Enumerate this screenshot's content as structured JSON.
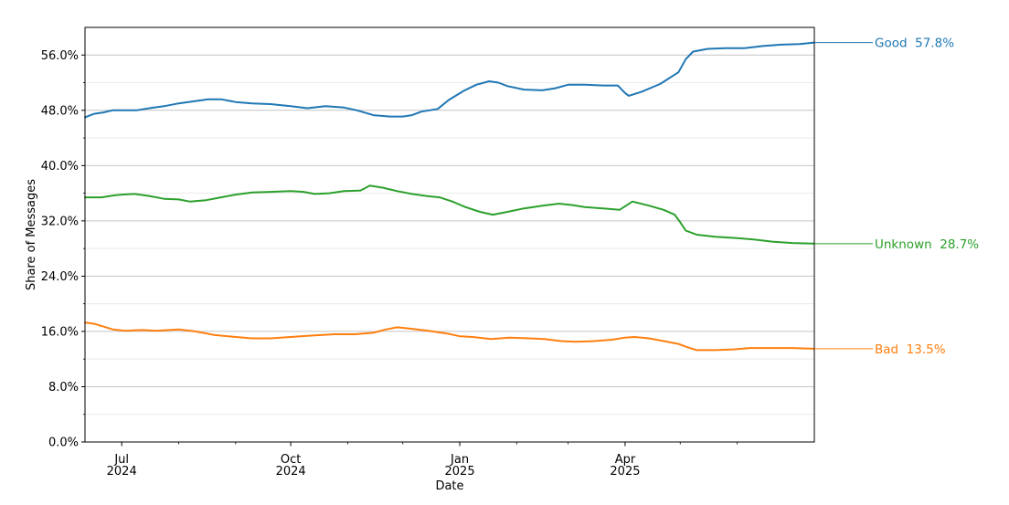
{
  "chart_data": {
    "type": "line",
    "xlabel": "Date",
    "ylabel": "Share of Messages",
    "xlim": [
      "2024-06-11",
      "2025-07-13"
    ],
    "ylim": [
      0,
      60
    ],
    "y_ticks": [
      0,
      8,
      16,
      24,
      32,
      40,
      48,
      56
    ],
    "y_tick_labels": [
      "0.0%",
      "8.0%",
      "16.0%",
      "24.0%",
      "32.0%",
      "40.0%",
      "48.0%",
      "56.0%"
    ],
    "y_minor_ticks": [
      4,
      12,
      20,
      28,
      36,
      44,
      52
    ],
    "x_ticks": [
      "2024-07-01",
      "2024-10-01",
      "2025-01-01",
      "2025-04-01"
    ],
    "x_tick_labels": [
      [
        "Jul",
        "2024"
      ],
      [
        "Oct",
        "2024"
      ],
      [
        "Jan",
        "2025"
      ],
      [
        "Apr",
        "2025"
      ]
    ],
    "x_minor_ticks": [
      "2024-08-01",
      "2024-09-01",
      "2024-11-01",
      "2024-12-01",
      "2025-02-01",
      "2025-03-01",
      "2025-05-01",
      "2025-06-01"
    ],
    "grid": "horizontal major and minor",
    "series": [
      {
        "name": "Good",
        "end_label": "Good  57.8%",
        "color": "#1f77b4",
        "points": [
          [
            "2024-06-11",
            47.0
          ],
          [
            "2024-06-16",
            47.5
          ],
          [
            "2024-06-21",
            47.7
          ],
          [
            "2024-06-26",
            48.0
          ],
          [
            "2024-07-01",
            48.0
          ],
          [
            "2024-07-09",
            48.0
          ],
          [
            "2024-07-16",
            48.3
          ],
          [
            "2024-07-24",
            48.6
          ],
          [
            "2024-08-01",
            49.0
          ],
          [
            "2024-08-09",
            49.3
          ],
          [
            "2024-08-17",
            49.6
          ],
          [
            "2024-08-24",
            49.6
          ],
          [
            "2024-09-01",
            49.2
          ],
          [
            "2024-09-10",
            49.0
          ],
          [
            "2024-09-20",
            48.9
          ],
          [
            "2024-10-01",
            48.6
          ],
          [
            "2024-10-10",
            48.3
          ],
          [
            "2024-10-20",
            48.6
          ],
          [
            "2024-10-30",
            48.4
          ],
          [
            "2024-11-06",
            48.0
          ],
          [
            "2024-11-15",
            47.3
          ],
          [
            "2024-11-24",
            47.1
          ],
          [
            "2024-12-01",
            47.1
          ],
          [
            "2024-12-06",
            47.3
          ],
          [
            "2024-12-11",
            47.8
          ],
          [
            "2024-12-20",
            48.2
          ],
          [
            "2024-12-26",
            49.5
          ],
          [
            "2025-01-03",
            50.8
          ],
          [
            "2025-01-10",
            51.7
          ],
          [
            "2025-01-17",
            52.2
          ],
          [
            "2025-01-22",
            52.0
          ],
          [
            "2025-01-27",
            51.5
          ],
          [
            "2025-02-05",
            51.0
          ],
          [
            "2025-02-15",
            50.9
          ],
          [
            "2025-02-22",
            51.2
          ],
          [
            "2025-03-01",
            51.7
          ],
          [
            "2025-03-10",
            51.7
          ],
          [
            "2025-03-20",
            51.6
          ],
          [
            "2025-03-28",
            51.6
          ],
          [
            "2025-04-01",
            50.5
          ],
          [
            "2025-04-03",
            50.1
          ],
          [
            "2025-04-10",
            50.7
          ],
          [
            "2025-04-20",
            51.8
          ],
          [
            "2025-04-30",
            53.5
          ],
          [
            "2025-05-04",
            55.4
          ],
          [
            "2025-05-08",
            56.5
          ],
          [
            "2025-05-16",
            56.9
          ],
          [
            "2025-05-26",
            57.0
          ],
          [
            "2025-06-05",
            57.0
          ],
          [
            "2025-06-15",
            57.3
          ],
          [
            "2025-06-25",
            57.5
          ],
          [
            "2025-07-05",
            57.6
          ],
          [
            "2025-07-13",
            57.8
          ]
        ]
      },
      {
        "name": "Unknown",
        "end_label": "Unknown  28.7%",
        "color": "#2ca02c",
        "points": [
          [
            "2024-06-11",
            35.4
          ],
          [
            "2024-06-20",
            35.4
          ],
          [
            "2024-06-27",
            35.7
          ],
          [
            "2024-07-01",
            35.8
          ],
          [
            "2024-07-08",
            35.9
          ],
          [
            "2024-07-16",
            35.6
          ],
          [
            "2024-07-24",
            35.2
          ],
          [
            "2024-08-01",
            35.1
          ],
          [
            "2024-08-07",
            34.8
          ],
          [
            "2024-08-16",
            35.0
          ],
          [
            "2024-08-24",
            35.4
          ],
          [
            "2024-09-01",
            35.8
          ],
          [
            "2024-09-10",
            36.1
          ],
          [
            "2024-09-20",
            36.2
          ],
          [
            "2024-10-01",
            36.3
          ],
          [
            "2024-10-08",
            36.2
          ],
          [
            "2024-10-14",
            35.9
          ],
          [
            "2024-10-22",
            36.0
          ],
          [
            "2024-10-30",
            36.3
          ],
          [
            "2024-11-08",
            36.4
          ],
          [
            "2024-11-13",
            37.1
          ],
          [
            "2024-11-20",
            36.8
          ],
          [
            "2024-11-28",
            36.3
          ],
          [
            "2024-12-06",
            35.9
          ],
          [
            "2024-12-14",
            35.6
          ],
          [
            "2024-12-21",
            35.4
          ],
          [
            "2024-12-28",
            34.8
          ],
          [
            "2025-01-04",
            34.0
          ],
          [
            "2025-01-12",
            33.3
          ],
          [
            "2025-01-19",
            32.9
          ],
          [
            "2025-01-27",
            33.3
          ],
          [
            "2025-02-05",
            33.8
          ],
          [
            "2025-02-15",
            34.2
          ],
          [
            "2025-02-24",
            34.5
          ],
          [
            "2025-03-03",
            34.3
          ],
          [
            "2025-03-10",
            34.0
          ],
          [
            "2025-03-20",
            33.8
          ],
          [
            "2025-03-29",
            33.6
          ],
          [
            "2025-04-05",
            34.8
          ],
          [
            "2025-04-14",
            34.2
          ],
          [
            "2025-04-22",
            33.6
          ],
          [
            "2025-04-28",
            32.9
          ],
          [
            "2025-05-01",
            31.8
          ],
          [
            "2025-05-04",
            30.6
          ],
          [
            "2025-05-10",
            30.0
          ],
          [
            "2025-05-20",
            29.7
          ],
          [
            "2025-06-01",
            29.5
          ],
          [
            "2025-06-10",
            29.3
          ],
          [
            "2025-06-20",
            29.0
          ],
          [
            "2025-07-01",
            28.8
          ],
          [
            "2025-07-13",
            28.7
          ]
        ]
      },
      {
        "name": "Bad",
        "end_label": "Bad  13.5%",
        "color": "#ff7f0e",
        "points": [
          [
            "2024-06-11",
            17.3
          ],
          [
            "2024-06-16",
            17.1
          ],
          [
            "2024-06-21",
            16.7
          ],
          [
            "2024-06-26",
            16.3
          ],
          [
            "2024-07-03",
            16.1
          ],
          [
            "2024-07-12",
            16.2
          ],
          [
            "2024-07-20",
            16.1
          ],
          [
            "2024-08-01",
            16.3
          ],
          [
            "2024-08-10",
            16.0
          ],
          [
            "2024-08-20",
            15.5
          ],
          [
            "2024-09-01",
            15.2
          ],
          [
            "2024-09-10",
            15.0
          ],
          [
            "2024-09-20",
            15.0
          ],
          [
            "2024-10-01",
            15.2
          ],
          [
            "2024-10-12",
            15.4
          ],
          [
            "2024-10-25",
            15.6
          ],
          [
            "2024-11-05",
            15.6
          ],
          [
            "2024-11-15",
            15.8
          ],
          [
            "2024-11-22",
            16.3
          ],
          [
            "2024-11-28",
            16.6
          ],
          [
            "2024-12-05",
            16.4
          ],
          [
            "2024-12-15",
            16.1
          ],
          [
            "2024-12-25",
            15.7
          ],
          [
            "2025-01-01",
            15.3
          ],
          [
            "2025-01-08",
            15.2
          ],
          [
            "2025-01-18",
            14.9
          ],
          [
            "2025-01-28",
            15.1
          ],
          [
            "2025-02-08",
            15.0
          ],
          [
            "2025-02-16",
            14.9
          ],
          [
            "2025-02-25",
            14.6
          ],
          [
            "2025-03-05",
            14.5
          ],
          [
            "2025-03-15",
            14.6
          ],
          [
            "2025-03-25",
            14.8
          ],
          [
            "2025-04-01",
            15.1
          ],
          [
            "2025-04-06",
            15.2
          ],
          [
            "2025-04-14",
            15.0
          ],
          [
            "2025-04-22",
            14.6
          ],
          [
            "2025-04-30",
            14.2
          ],
          [
            "2025-05-05",
            13.7
          ],
          [
            "2025-05-10",
            13.3
          ],
          [
            "2025-05-20",
            13.3
          ],
          [
            "2025-05-30",
            13.4
          ],
          [
            "2025-06-08",
            13.6
          ],
          [
            "2025-06-20",
            13.6
          ],
          [
            "2025-07-01",
            13.6
          ],
          [
            "2025-07-13",
            13.5
          ]
        ]
      }
    ]
  }
}
